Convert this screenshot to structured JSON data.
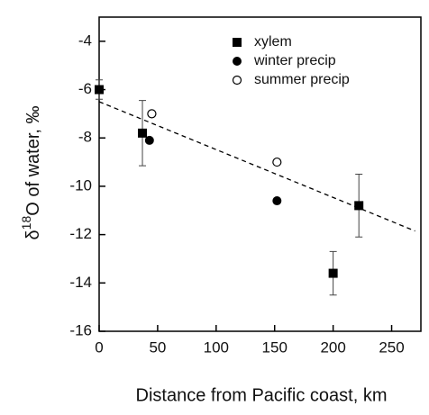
{
  "chart_data": {
    "type": "scatter",
    "xlabel": "Distance from Pacific coast, km",
    "ylabel": [
      "δ",
      "18",
      "O of water, ‰"
    ],
    "xlim": [
      0,
      275
    ],
    "ylim": [
      -16,
      -3
    ],
    "xticks": [
      0,
      50,
      100,
      150,
      200,
      250
    ],
    "yticks": [
      -16,
      -14,
      -12,
      -10,
      -8,
      -6,
      -4
    ],
    "series": [
      {
        "name": "xylem",
        "marker": "square",
        "color": "#000000",
        "x": [
          0,
          37,
          200,
          222
        ],
        "values": [
          -6,
          -7.8,
          -13.6,
          -10.8
        ],
        "errors": [
          0.4,
          1.35,
          0.9,
          1.3
        ]
      },
      {
        "name": "winter precip",
        "marker": "circle",
        "color": "#000000",
        "x": [
          43,
          152
        ],
        "values": [
          -8.1,
          -10.6
        ]
      },
      {
        "name": "summer precip",
        "marker": "open-circle",
        "color": "#000000",
        "x": [
          45,
          152
        ],
        "values": [
          -7,
          -9
        ]
      }
    ],
    "fit_line": {
      "x": [
        0,
        270
      ],
      "values": [
        -6.5,
        -11.85
      ],
      "color": "#000000",
      "dashed": true
    }
  }
}
